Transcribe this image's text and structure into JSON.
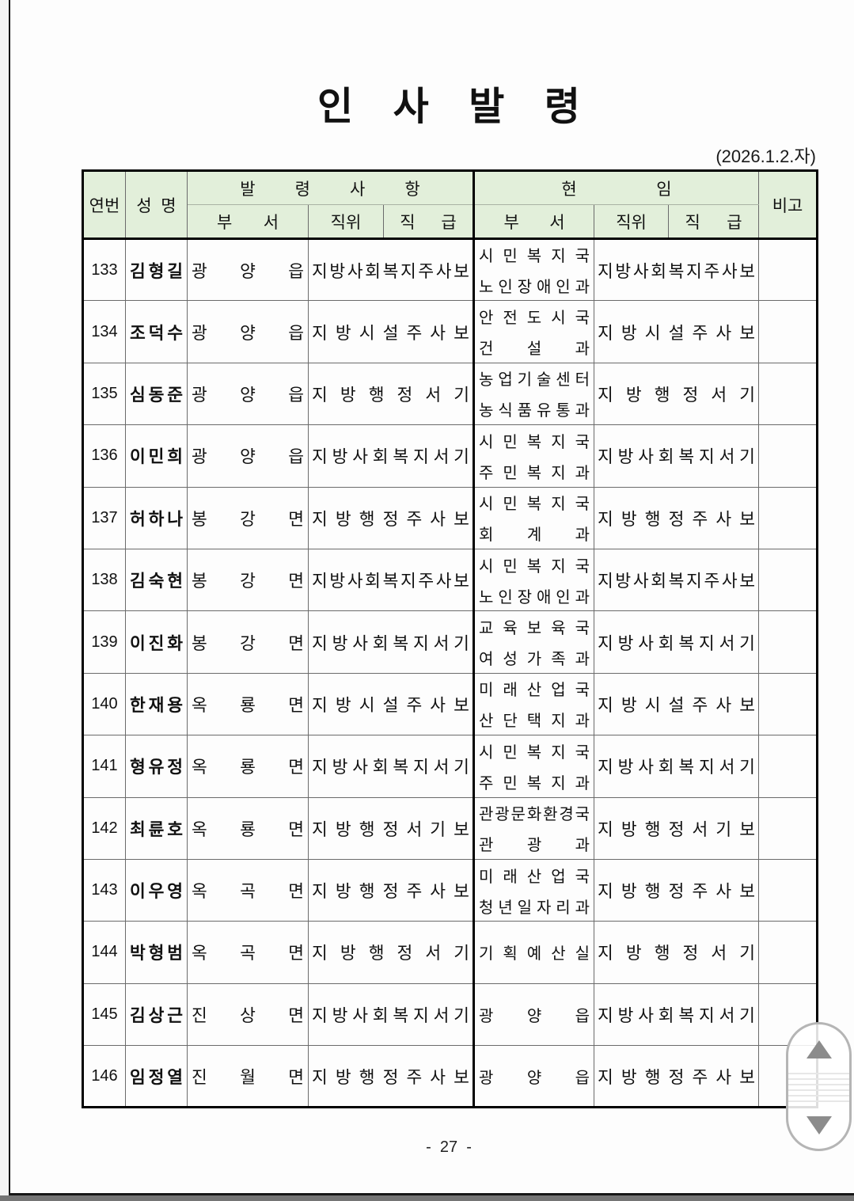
{
  "document": {
    "title": "인 사 발 령",
    "date_note": "(2026.1.2.자)",
    "page_number": "-  27  -"
  },
  "table": {
    "headers": {
      "no": "연번",
      "name": "성 명",
      "appointment_group": "발 령 사 항",
      "current_group": "현 임",
      "dept": "부 서",
      "position": "직위",
      "grade": "직 급",
      "note": "비고"
    },
    "rows": [
      {
        "no": "133",
        "name": "김 형 길",
        "new_dept": "광 양 읍",
        "new_grade": "지방사회복지주사보",
        "cur_dept1": "시 민 복 지 국",
        "cur_dept2": "노 인 장 애 인 과",
        "cur_grade": "지방사회복지주사보"
      },
      {
        "no": "134",
        "name": "조 덕 수",
        "new_dept": "광 양 읍",
        "new_grade": "지 방 시 설 주 사 보",
        "cur_dept1": "안 전 도 시 국",
        "cur_dept2": "건 설 과",
        "cur_grade": "지 방 시 설 주 사 보"
      },
      {
        "no": "135",
        "name": "심 동 준",
        "new_dept": "광 양 읍",
        "new_grade": "지 방 행 정 서 기",
        "cur_dept1": "농업기술센터",
        "cur_dept2": "농식품유통과",
        "cur_grade": "지 방 행 정 서 기"
      },
      {
        "no": "136",
        "name": "이 민 희",
        "new_dept": "광 양 읍",
        "new_grade": "지방사회복지서기",
        "cur_dept1": "시 민 복 지 국",
        "cur_dept2": "주 민 복 지 과",
        "cur_grade": "지방사회복지서기"
      },
      {
        "no": "137",
        "name": "허 하 나",
        "new_dept": "봉 강 면",
        "new_grade": "지 방 행 정 주 사 보",
        "cur_dept1": "시 민 복 지 국",
        "cur_dept2": "회 계 과",
        "cur_grade": "지 방 행 정 주 사 보"
      },
      {
        "no": "138",
        "name": "김 숙 현",
        "new_dept": "봉 강 면",
        "new_grade": "지방사회복지주사보",
        "cur_dept1": "시 민 복 지 국",
        "cur_dept2": "노 인 장 애 인 과",
        "cur_grade": "지방사회복지주사보"
      },
      {
        "no": "139",
        "name": "이 진 화",
        "new_dept": "봉 강 면",
        "new_grade": "지방사회복지서기",
        "cur_dept1": "교 육 보 육 국",
        "cur_dept2": "여 성 가 족 과",
        "cur_grade": "지방사회복지서기"
      },
      {
        "no": "140",
        "name": "한 재 용",
        "new_dept": "옥 룡 면",
        "new_grade": "지 방 시 설 주 사 보",
        "cur_dept1": "미 래 산 업 국",
        "cur_dept2": "산 단 택 지 과",
        "cur_grade": "지 방 시 설 주 사 보"
      },
      {
        "no": "141",
        "name": "형 유 정",
        "new_dept": "옥 룡 면",
        "new_grade": "지방사회복지서기",
        "cur_dept1": "시 민 복 지 국",
        "cur_dept2": "주 민 복 지 과",
        "cur_grade": "지방사회복지서기"
      },
      {
        "no": "142",
        "name": "최 륜 호",
        "new_dept": "옥 룡 면",
        "new_grade": "지 방 행 정 서 기 보",
        "cur_dept1": "관광문화환경국",
        "cur_dept2": "관 광 과",
        "cur_grade": "지 방 행 정 서 기 보"
      },
      {
        "no": "143",
        "name": "이 우 영",
        "new_dept": "옥 곡 면",
        "new_grade": "지 방 행 정 주 사 보",
        "cur_dept1": "미 래 산 업 국",
        "cur_dept2": "청년일자리과",
        "cur_grade": "지 방 행 정 주 사 보"
      },
      {
        "no": "144",
        "name": "박 형 범",
        "new_dept": "옥 곡 면",
        "new_grade": "지 방 행 정 서 기",
        "cur_dept1": "기 획 예 산 실",
        "cur_grade": "지 방 행 정 서 기"
      },
      {
        "no": "145",
        "name": "김 상 근",
        "new_dept": "진 상 면",
        "new_grade": "지방사회복지서기",
        "cur_dept1": "광 양 읍",
        "cur_grade": "지방사회복지서기"
      },
      {
        "no": "146",
        "name": "임 정 열",
        "new_dept": "진 월 면",
        "new_grade": "지 방 행 정 주 사 보",
        "cur_dept1": "광 양 읍",
        "cur_grade": "지 방 행 정 주 사 보"
      }
    ]
  },
  "scrollbar": {
    "up_icon": "triangle-up",
    "down_icon": "triangle-down"
  },
  "colors": {
    "header_bg": "#e2efda",
    "table_border": "#000000",
    "footer_bar": "#757575"
  }
}
